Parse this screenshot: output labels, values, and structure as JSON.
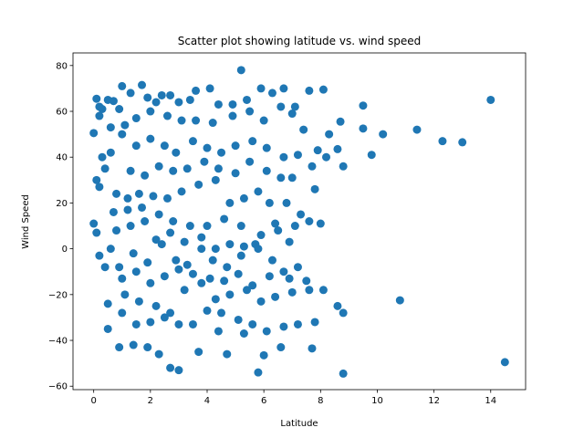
{
  "chart_data": {
    "type": "scatter",
    "title": "Scatter plot showing latitude vs. wind speed",
    "xlabel": "Latitude",
    "ylabel": "Wind Speed",
    "xlim": [
      -0.73,
      15.23
    ],
    "ylim": [
      -61.5,
      85.5
    ],
    "xticks": [
      0,
      2,
      4,
      6,
      8,
      10,
      12,
      14
    ],
    "yticks": [
      -60,
      -40,
      -20,
      0,
      20,
      40,
      60,
      80
    ],
    "grid": false,
    "marker_color": "#1f77b4",
    "points": [
      [
        0.1,
        65.5
      ],
      [
        0.3,
        61
      ],
      [
        0.5,
        65
      ],
      [
        0.2,
        58
      ],
      [
        0.0,
        50.5
      ],
      [
        0.7,
        64.5
      ],
      [
        0.9,
        61
      ],
      [
        1.0,
        71
      ],
      [
        1.3,
        68
      ],
      [
        1.7,
        71.5
      ],
      [
        1.9,
        66
      ],
      [
        2.2,
        64
      ],
      [
        2.4,
        67
      ],
      [
        2.7,
        67
      ],
      [
        3.0,
        64
      ],
      [
        3.4,
        65
      ],
      [
        3.6,
        69
      ],
      [
        4.1,
        70
      ],
      [
        4.4,
        63
      ],
      [
        4.9,
        63
      ],
      [
        5.2,
        78
      ],
      [
        5.4,
        65
      ],
      [
        5.9,
        70
      ],
      [
        6.3,
        68
      ],
      [
        6.7,
        70
      ],
      [
        7.1,
        62
      ],
      [
        7.6,
        69
      ],
      [
        8.1,
        69.5
      ],
      [
        9.5,
        62.5
      ],
      [
        14.0,
        65
      ],
      [
        11.4,
        52
      ],
      [
        12.3,
        47
      ],
      [
        13.0,
        46.5
      ],
      [
        10.2,
        50
      ],
      [
        9.8,
        41
      ],
      [
        9.5,
        52.5
      ],
      [
        8.7,
        55.5
      ],
      [
        8.3,
        50
      ],
      [
        8.6,
        43.5
      ],
      [
        8.8,
        36
      ],
      [
        7.7,
        36
      ],
      [
        7.2,
        41
      ],
      [
        6.7,
        40
      ],
      [
        6.1,
        44
      ],
      [
        5.6,
        47
      ],
      [
        5.0,
        45
      ],
      [
        4.5,
        42
      ],
      [
        4.0,
        44
      ],
      [
        3.5,
        47
      ],
      [
        2.9,
        42
      ],
      [
        2.5,
        45
      ],
      [
        2.0,
        48
      ],
      [
        1.5,
        45
      ],
      [
        1.0,
        50
      ],
      [
        0.6,
        42
      ],
      [
        0.3,
        40
      ],
      [
        0.1,
        30
      ],
      [
        0.2,
        27
      ],
      [
        0.4,
        35
      ],
      [
        0.8,
        24
      ],
      [
        1.2,
        22
      ],
      [
        1.6,
        24
      ],
      [
        2.1,
        23
      ],
      [
        2.6,
        22
      ],
      [
        3.1,
        25
      ],
      [
        3.7,
        28
      ],
      [
        4.3,
        30
      ],
      [
        4.8,
        20
      ],
      [
        5.3,
        22
      ],
      [
        5.8,
        25
      ],
      [
        6.2,
        20
      ],
      [
        6.8,
        20
      ],
      [
        7.3,
        15
      ],
      [
        7.8,
        26
      ],
      [
        8.0,
        11
      ],
      [
        7.6,
        12
      ],
      [
        7.1,
        10
      ],
      [
        6.5,
        8
      ],
      [
        5.9,
        6
      ],
      [
        5.2,
        10
      ],
      [
        4.6,
        13
      ],
      [
        4.0,
        10
      ],
      [
        3.4,
        10
      ],
      [
        2.8,
        12
      ],
      [
        2.3,
        15
      ],
      [
        1.8,
        12
      ],
      [
        1.3,
        10
      ],
      [
        0.8,
        8
      ],
      [
        0.0,
        11
      ],
      [
        0.1,
        7
      ],
      [
        0.2,
        -3
      ],
      [
        0.4,
        -8
      ],
      [
        0.6,
        0
      ],
      [
        0.9,
        -8
      ],
      [
        1.4,
        -2
      ],
      [
        1.9,
        -6
      ],
      [
        2.4,
        2
      ],
      [
        2.9,
        -5
      ],
      [
        3.3,
        -7
      ],
      [
        3.8,
        0
      ],
      [
        4.2,
        -5
      ],
      [
        4.7,
        -8
      ],
      [
        5.2,
        -3
      ],
      [
        5.7,
        2
      ],
      [
        6.3,
        -5
      ],
      [
        6.9,
        -13
      ],
      [
        7.2,
        -8
      ],
      [
        7.6,
        -18
      ],
      [
        8.1,
        -18
      ],
      [
        8.6,
        -25
      ],
      [
        8.8,
        -28
      ],
      [
        10.8,
        -22.5
      ],
      [
        14.5,
        -49.5
      ],
      [
        8.8,
        -54.5
      ],
      [
        7.8,
        -32
      ],
      [
        7.2,
        -33
      ],
      [
        6.7,
        -34
      ],
      [
        6.1,
        -36
      ],
      [
        5.6,
        -33
      ],
      [
        5.1,
        -31
      ],
      [
        4.5,
        -28
      ],
      [
        4.0,
        -27
      ],
      [
        3.5,
        -33
      ],
      [
        3.0,
        -33
      ],
      [
        2.5,
        -30
      ],
      [
        2.0,
        -32
      ],
      [
        1.5,
        -33
      ],
      [
        1.0,
        -28
      ],
      [
        0.5,
        -35
      ],
      [
        0.9,
        -43
      ],
      [
        1.4,
        -42
      ],
      [
        1.9,
        -43
      ],
      [
        2.3,
        -46
      ],
      [
        2.7,
        -52
      ],
      [
        3.0,
        -53
      ],
      [
        3.7,
        -45
      ],
      [
        4.4,
        -36
      ],
      [
        4.7,
        -46
      ],
      [
        5.3,
        -37
      ],
      [
        5.8,
        -54
      ],
      [
        6.0,
        -46.5
      ],
      [
        6.6,
        -43
      ],
      [
        7.7,
        -43.5
      ],
      [
        0.5,
        -24
      ],
      [
        1.1,
        -20
      ],
      [
        1.6,
        -23
      ],
      [
        2.2,
        -25
      ],
      [
        2.7,
        -28
      ],
      [
        3.2,
        -18
      ],
      [
        3.8,
        -15
      ],
      [
        4.3,
        -22
      ],
      [
        4.8,
        -20
      ],
      [
        5.4,
        -18
      ],
      [
        5.9,
        -23
      ],
      [
        6.4,
        -21
      ],
      [
        7.0,
        -19
      ],
      [
        7.5,
        -14
      ],
      [
        3.6,
        56
      ],
      [
        4.2,
        55
      ],
      [
        4.9,
        58
      ],
      [
        5.5,
        60
      ],
      [
        6.0,
        56
      ],
      [
        6.6,
        62
      ],
      [
        7.0,
        59
      ],
      [
        7.4,
        52
      ],
      [
        7.9,
        43
      ],
      [
        8.2,
        40
      ],
      [
        3.1,
        56
      ],
      [
        2.6,
        58
      ],
      [
        2.0,
        60
      ],
      [
        1.5,
        57
      ],
      [
        1.1,
        54
      ],
      [
        0.6,
        53
      ],
      [
        0.2,
        62
      ],
      [
        1.3,
        34
      ],
      [
        1.8,
        32
      ],
      [
        2.3,
        36
      ],
      [
        2.8,
        34
      ],
      [
        3.3,
        35
      ],
      [
        3.9,
        38
      ],
      [
        4.4,
        35
      ],
      [
        5.0,
        33
      ],
      [
        5.5,
        38
      ],
      [
        6.1,
        34
      ],
      [
        6.6,
        31
      ],
      [
        7.0,
        31
      ],
      [
        0.7,
        16
      ],
      [
        1.2,
        17
      ],
      [
        1.7,
        18
      ],
      [
        2.2,
        4
      ],
      [
        2.7,
        7
      ],
      [
        3.2,
        3
      ],
      [
        3.8,
        5
      ],
      [
        4.3,
        0
      ],
      [
        4.8,
        2
      ],
      [
        5.3,
        1
      ],
      [
        5.8,
        0
      ],
      [
        6.4,
        11
      ],
      [
        6.9,
        3
      ],
      [
        1.0,
        -13
      ],
      [
        1.5,
        -10
      ],
      [
        2.0,
        -15
      ],
      [
        2.5,
        -12
      ],
      [
        3.0,
        -9
      ],
      [
        3.5,
        -11
      ],
      [
        4.1,
        -13
      ],
      [
        4.6,
        -14
      ],
      [
        5.1,
        -11
      ],
      [
        5.6,
        -16
      ],
      [
        6.2,
        -12
      ],
      [
        6.7,
        -10
      ]
    ]
  }
}
